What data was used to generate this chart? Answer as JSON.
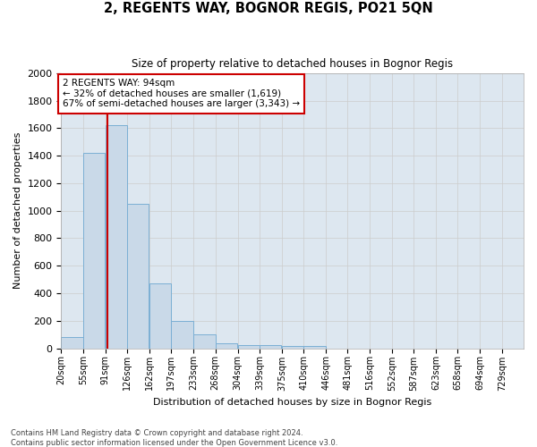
{
  "title": "2, REGENTS WAY, BOGNOR REGIS, PO21 5QN",
  "subtitle": "Size of property relative to detached houses in Bognor Regis",
  "xlabel": "Distribution of detached houses by size in Bognor Regis",
  "ylabel": "Number of detached properties",
  "footnote1": "Contains HM Land Registry data © Crown copyright and database right 2024.",
  "footnote2": "Contains public sector information licensed under the Open Government Licence v3.0.",
  "bin_labels": [
    "20sqm",
    "55sqm",
    "91sqm",
    "126sqm",
    "162sqm",
    "197sqm",
    "233sqm",
    "268sqm",
    "304sqm",
    "339sqm",
    "375sqm",
    "410sqm",
    "446sqm",
    "481sqm",
    "516sqm",
    "552sqm",
    "587sqm",
    "623sqm",
    "658sqm",
    "694sqm",
    "729sqm"
  ],
  "bin_lefts": [
    20,
    55,
    91,
    126,
    162,
    197,
    233,
    268,
    304,
    339,
    375,
    410,
    446,
    481,
    516,
    552,
    587,
    623,
    658,
    694,
    729
  ],
  "bar_values": [
    80,
    1420,
    1620,
    1050,
    470,
    200,
    100,
    35,
    25,
    20,
    15,
    15,
    0,
    0,
    0,
    0,
    0,
    0,
    0,
    0,
    0
  ],
  "bar_color": "#c9d9e8",
  "bar_edge_color": "#7bafd4",
  "bin_width": 35,
  "property_line_x": 94,
  "annotation_title": "2 REGENTS WAY: 94sqm",
  "annotation_line1": "← 32% of detached houses are smaller (1,619)",
  "annotation_line2": "67% of semi-detached houses are larger (3,343) →",
  "annotation_box_color": "#ffffff",
  "annotation_box_edge_color": "#cc0000",
  "line_color": "#cc0000",
  "ylim": [
    0,
    2000
  ],
  "yticks": [
    0,
    200,
    400,
    600,
    800,
    1000,
    1200,
    1400,
    1600,
    1800,
    2000
  ],
  "grid_color": "#cccccc",
  "bg_color": "#dde7f0"
}
